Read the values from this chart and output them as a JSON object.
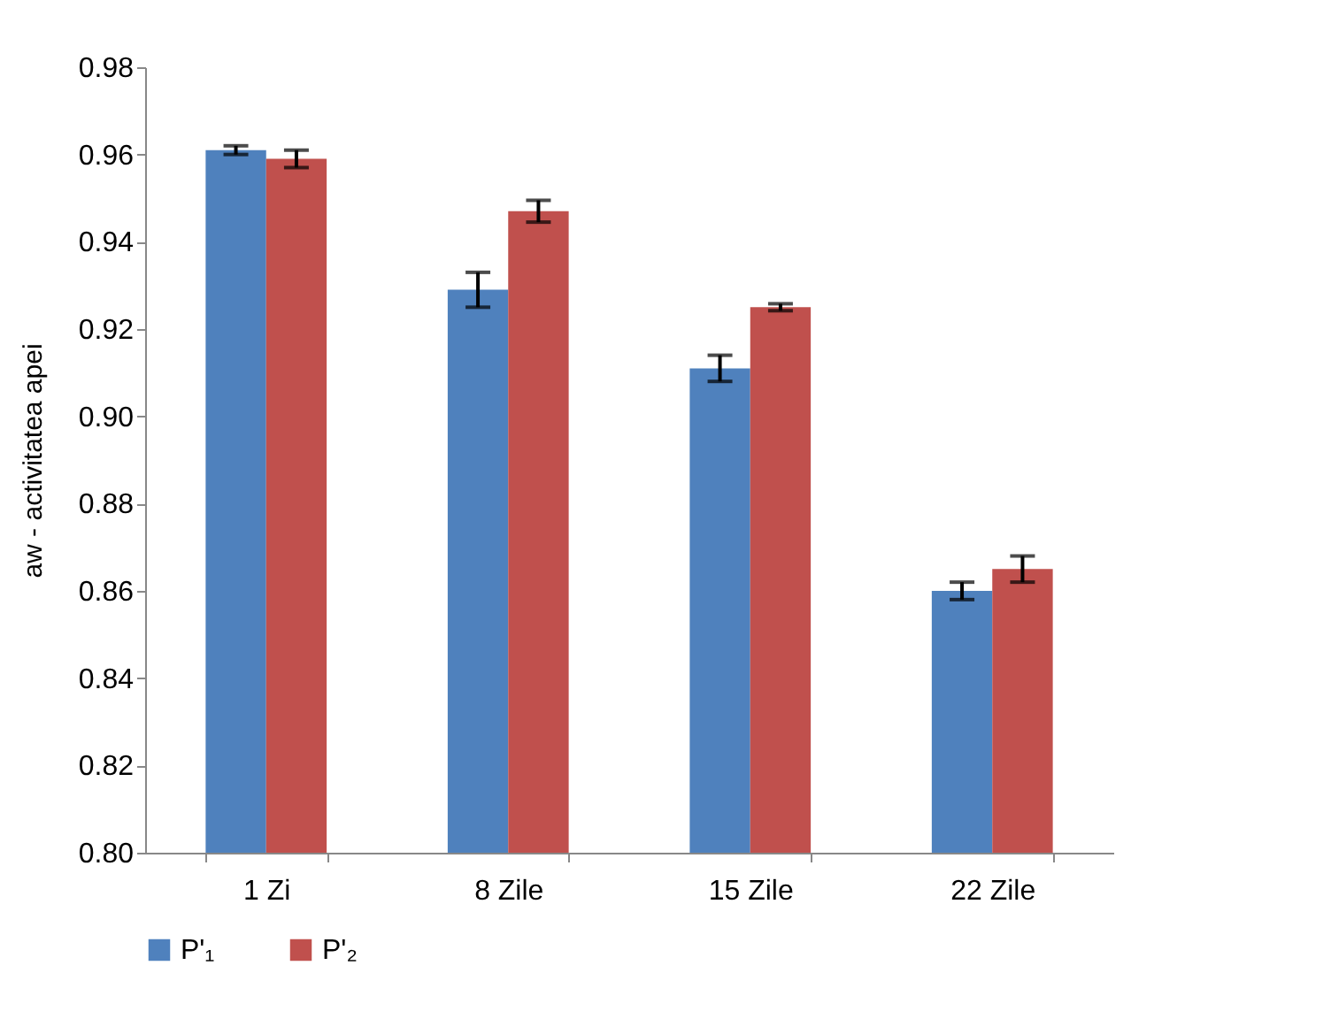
{
  "chart_data": {
    "type": "bar",
    "ylabel": "aw - activitatea apei",
    "categories": [
      "1 Zi",
      "8 Zile",
      "15 Zile",
      "22 Zile"
    ],
    "series": [
      {
        "name": "P'₁",
        "color": "#4f81bd",
        "values": [
          0.961,
          0.929,
          0.911,
          0.86
        ],
        "errors": [
          0.001,
          0.004,
          0.003,
          0.002
        ]
      },
      {
        "name": "P'₂",
        "color": "#c0504d",
        "values": [
          0.959,
          0.947,
          0.925,
          0.865
        ],
        "errors": [
          0.002,
          0.0025,
          0.0008,
          0.003
        ]
      }
    ],
    "ylim": [
      0.8,
      0.98
    ],
    "yticks": [
      {
        "value": 0.8,
        "label": "0.80"
      },
      0.82,
      0.84,
      0.86,
      0.88,
      {
        "value": 0.9,
        "label": "0.90"
      },
      0.92,
      0.94,
      0.96,
      0.98
    ],
    "grid": false,
    "legend": "bottom"
  }
}
